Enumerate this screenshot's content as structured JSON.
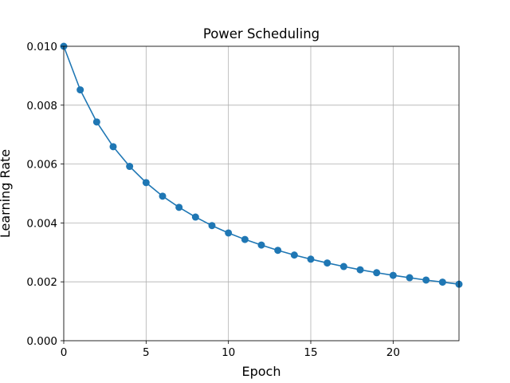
{
  "chart_data": {
    "type": "line",
    "title": "Power Scheduling",
    "xlabel": "Epoch",
    "ylabel": "Learning Rate",
    "xlim": [
      0,
      24
    ],
    "ylim": [
      0,
      0.01
    ],
    "grid": true,
    "marker": "circle",
    "x_ticks": [
      0,
      5,
      10,
      15,
      20
    ],
    "x_tick_labels": [
      "0",
      "5",
      "10",
      "15",
      "20"
    ],
    "y_ticks": [
      0,
      0.002,
      0.004,
      0.006,
      0.008,
      0.01
    ],
    "y_tick_labels": [
      "0.000",
      "0.002",
      "0.004",
      "0.006",
      "0.008",
      "0.010"
    ],
    "series": [
      {
        "color": "#1f77b4",
        "x": [
          0,
          1,
          2,
          3,
          4,
          5,
          6,
          7,
          8,
          9,
          10,
          11,
          12,
          13,
          14,
          15,
          16,
          17,
          18,
          19,
          20,
          21,
          22,
          23,
          24
        ],
        "y": [
          0.01,
          0.00852,
          0.00743,
          0.00659,
          0.00592,
          0.00537,
          0.00491,
          0.00453,
          0.0042,
          0.00391,
          0.00366,
          0.00344,
          0.00325,
          0.00307,
          0.00291,
          0.00277,
          0.00264,
          0.00252,
          0.00241,
          0.00231,
          0.00222,
          0.00214,
          0.00206,
          0.00199,
          0.00192
        ]
      }
    ]
  }
}
